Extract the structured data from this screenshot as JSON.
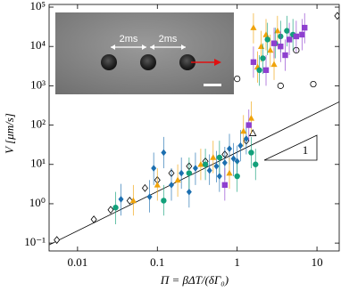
{
  "chart_data": {
    "type": "scatter",
    "xlabel": "Π = βΔT/(δΓ₀)",
    "ylabel": "V [μm/s]",
    "xscale": "log",
    "yscale": "log",
    "xlim": [
      0.0044,
      19
    ],
    "ylim": [
      0.063,
      117000
    ],
    "xticks": [
      0.01,
      0.1,
      1,
      10
    ],
    "yticks": [
      {
        "value": 0.1,
        "label": "10⁻¹"
      },
      {
        "value": 1,
        "label": "10⁰"
      },
      {
        "value": 10,
        "label": "10¹"
      },
      {
        "value": 100,
        "label": "10²"
      },
      {
        "value": 1000,
        "label": "10³"
      },
      {
        "value": 10000,
        "label": "10⁴"
      },
      {
        "value": 100000,
        "label": "10⁵"
      }
    ],
    "slope_label": "1",
    "inset_labels": [
      "2ms",
      "2ms"
    ],
    "fit_line": {
      "color": "#000000",
      "x": [
        0.0044,
        19
      ],
      "values": [
        0.09,
        390
      ]
    },
    "series": [
      {
        "color": "#000000",
        "marker": "diamond",
        "filled": false,
        "x": [
          0.0055,
          0.016,
          0.026,
          0.045,
          0.07,
          0.1,
          0.15,
          0.25,
          0.4,
          0.7,
          1.3,
          18
        ],
        "values": [
          0.12,
          0.4,
          0.7,
          1.2,
          2.5,
          4,
          6,
          9,
          12,
          18,
          40,
          60000
        ]
      },
      {
        "color": "#000000",
        "marker": "circle",
        "filled": false,
        "x": [
          1.0,
          5.5,
          9,
          3.5
        ],
        "values": [
          1500,
          8000,
          1100,
          1000
        ]
      },
      {
        "color": "#000000",
        "marker": "triangle",
        "filled": false,
        "x": [
          1.57
        ],
        "values": [
          62
        ]
      },
      {
        "color": "#1c6fb0",
        "marker": "diamond",
        "filled": true,
        "x": [
          0.035,
          0.08,
          0.09,
          0.12,
          0.15,
          0.2,
          0.3,
          0.45,
          0.55,
          0.7,
          0.8,
          0.9,
          1.0,
          1.1,
          1.3,
          0.6,
          0.25
        ],
        "values": [
          1.3,
          1.5,
          8,
          20,
          3,
          6,
          8,
          7,
          9,
          11,
          25,
          14,
          12,
          30,
          45,
          5,
          2
        ],
        "errors": [
          [
            0.5,
            3.2
          ],
          [
            0.6,
            4
          ],
          [
            3,
            20
          ],
          [
            8,
            50
          ],
          [
            1.2,
            8
          ],
          [
            2.4,
            15
          ],
          [
            3,
            20
          ],
          [
            3,
            18
          ],
          [
            3.5,
            22
          ],
          [
            4,
            28
          ],
          [
            10,
            60
          ],
          [
            5,
            35
          ],
          [
            5,
            30
          ],
          [
            12,
            75
          ],
          [
            18,
            110
          ],
          [
            2,
            12
          ],
          [
            0.8,
            5
          ]
        ]
      },
      {
        "color": "#f0a30a",
        "marker": "triangle",
        "filled": true,
        "x": [
          0.05,
          0.1,
          0.18,
          0.35,
          0.5,
          0.8,
          1.2,
          1.5,
          1.6,
          2.0,
          2.3,
          2.6,
          3.2,
          2.9,
          1.8
        ],
        "values": [
          1.2,
          3,
          4,
          10,
          15,
          6,
          70,
          150,
          30000,
          10000,
          20000,
          8000,
          25000,
          3500,
          3000
        ],
        "errors": [
          [
            0.5,
            3
          ],
          [
            1.2,
            8
          ],
          [
            1.5,
            10
          ],
          [
            4,
            25
          ],
          [
            6,
            40
          ],
          [
            2.4,
            15
          ],
          [
            28,
            180
          ],
          [
            60,
            400
          ],
          [
            12000,
            70000
          ],
          [
            4000,
            25000
          ],
          [
            8000,
            50000
          ],
          [
            3000,
            20000
          ],
          [
            10000,
            60000
          ],
          [
            1400,
            9000
          ],
          [
            1200,
            7500
          ]
        ]
      },
      {
        "color": "#12a07a",
        "marker": "circle",
        "filled": true,
        "x": [
          0.03,
          0.12,
          0.25,
          0.4,
          0.6,
          1.0,
          1.5,
          1.7,
          2.4,
          3,
          3.5,
          4.2,
          2.1,
          1.9,
          5
        ],
        "values": [
          0.8,
          1.2,
          6,
          10,
          15,
          5,
          20,
          10,
          15000,
          12000,
          18000,
          25000,
          5000,
          2500,
          20000
        ],
        "errors": [
          [
            0.3,
            2
          ],
          [
            0.5,
            3
          ],
          [
            2.4,
            15
          ],
          [
            4,
            25
          ],
          [
            6,
            40
          ],
          [
            2,
            12
          ],
          [
            8,
            50
          ],
          [
            4,
            25
          ],
          [
            6000,
            40000
          ],
          [
            5000,
            30000
          ],
          [
            7000,
            45000
          ],
          [
            10000,
            60000
          ],
          [
            2000,
            12000
          ],
          [
            1000,
            6000
          ],
          [
            8000,
            50000
          ]
        ]
      },
      {
        "color": "#8e3fcf",
        "marker": "square",
        "filled": true,
        "x": [
          0.7,
          1.4,
          1.6,
          2.3,
          3.5,
          4.5,
          5.5,
          6.5,
          4,
          7,
          2.9
        ],
        "values": [
          3,
          100,
          4000,
          2500,
          10000,
          15000,
          18000,
          20000,
          6000,
          30000,
          12000
        ],
        "errors": [
          [
            1.2,
            8
          ],
          [
            40,
            250
          ],
          [
            1600,
            10000
          ],
          [
            1000,
            6000
          ],
          [
            4000,
            25000
          ],
          [
            6000,
            40000
          ],
          [
            7000,
            45000
          ],
          [
            8000,
            50000
          ],
          [
            2400,
            15000
          ],
          [
            12000,
            70000
          ],
          [
            5000,
            30000
          ]
        ]
      }
    ]
  }
}
